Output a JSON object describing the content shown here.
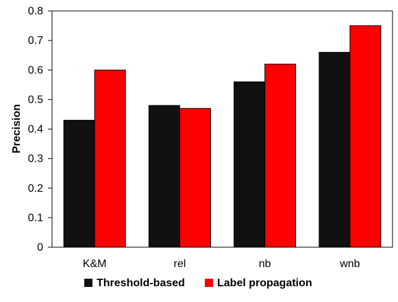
{
  "chart_data": {
    "type": "bar",
    "title": "",
    "xlabel": "",
    "ylabel": "Precision",
    "ylim": [
      0,
      0.8
    ],
    "yticks": [
      0,
      0.1,
      0.2,
      0.3,
      0.4,
      0.5,
      0.6,
      0.7,
      0.8
    ],
    "ytick_labels": [
      "0",
      "0.1",
      "0.2",
      "0.3",
      "0.4",
      "0.5",
      "0.6",
      "0.7",
      "0.8"
    ],
    "categories": [
      "K&M",
      "rel",
      "nb",
      "wnb"
    ],
    "grid": false,
    "legend_position": "bottom",
    "series": [
      {
        "name": "Threshold-based",
        "color": "#111111",
        "values": [
          0.43,
          0.48,
          0.56,
          0.66
        ]
      },
      {
        "name": "Label propagation",
        "color": "#ff0000",
        "values": [
          0.6,
          0.47,
          0.62,
          0.75
        ]
      }
    ]
  }
}
